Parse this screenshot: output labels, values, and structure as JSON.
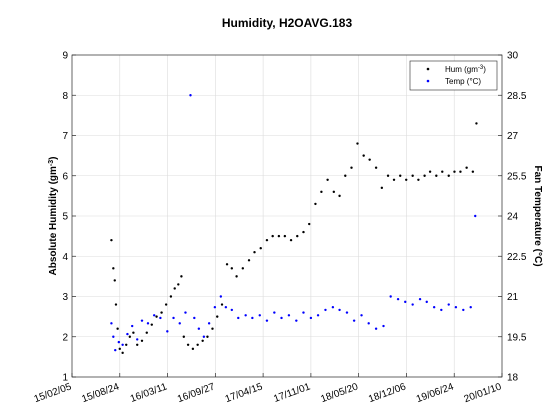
{
  "chart_data": {
    "type": "scatter",
    "title": "Humidity, H2OAVG.183",
    "ylabel_left": "Absolute Humidity (gm",
    "ylabel_left_sup": "-3",
    "ylabel_left_end": ")",
    "ylabel_right": "Fan Temperature (°C)",
    "x_ticks": [
      "15/02/05",
      "15/08/24",
      "16/03/11",
      "16/09/27",
      "17/04/15",
      "17/11/01",
      "18/05/20",
      "18/12/06",
      "19/06/24",
      "20/01/10"
    ],
    "xlim": [
      "2015-02-05",
      "2020-01-10"
    ],
    "ylim_left": [
      1,
      9
    ],
    "y_ticks_left": [
      "1",
      "2",
      "3",
      "4",
      "5",
      "6",
      "7",
      "8",
      "9"
    ],
    "ylim_right": [
      18,
      30
    ],
    "y_ticks_right": [
      "18",
      "19.5",
      "21",
      "22.5",
      "24",
      "25.5",
      "27",
      "28.5",
      "30"
    ],
    "grid": true,
    "legend_position": "top-right",
    "series": [
      {
        "name": "Hum (gm",
        "name_sup": "-3",
        "name_end": ")",
        "axis": "left",
        "color": "#000000",
        "marker": "dot",
        "points": [
          [
            "2015-07-20",
            4.4
          ],
          [
            "2015-07-28",
            3.7
          ],
          [
            "2015-08-03",
            3.4
          ],
          [
            "2015-08-08",
            2.8
          ],
          [
            "2015-08-15",
            2.2
          ],
          [
            "2015-08-24",
            1.7
          ],
          [
            "2015-09-05",
            1.6
          ],
          [
            "2015-09-20",
            1.8
          ],
          [
            "2015-10-05",
            2.0
          ],
          [
            "2015-10-20",
            2.1
          ],
          [
            "2015-11-05",
            1.8
          ],
          [
            "2015-11-25",
            1.9
          ],
          [
            "2015-12-15",
            2.1
          ],
          [
            "2016-01-05",
            2.3
          ],
          [
            "2016-01-25",
            2.5
          ],
          [
            "2016-02-15",
            2.6
          ],
          [
            "2016-03-05",
            2.8
          ],
          [
            "2016-03-25",
            3.0
          ],
          [
            "2016-04-10",
            3.2
          ],
          [
            "2016-04-25",
            3.3
          ],
          [
            "2016-05-08",
            3.5
          ],
          [
            "2016-05-18",
            2.0
          ],
          [
            "2016-06-05",
            1.8
          ],
          [
            "2016-06-25",
            1.7
          ],
          [
            "2016-07-15",
            1.8
          ],
          [
            "2016-08-05",
            1.9
          ],
          [
            "2016-08-25",
            2.0
          ],
          [
            "2016-09-15",
            2.2
          ],
          [
            "2016-10-05",
            2.5
          ],
          [
            "2016-10-25",
            2.8
          ],
          [
            "2016-11-15",
            3.8
          ],
          [
            "2016-12-05",
            3.7
          ],
          [
            "2016-12-25",
            3.5
          ],
          [
            "2017-01-20",
            3.7
          ],
          [
            "2017-02-15",
            3.9
          ],
          [
            "2017-03-10",
            4.1
          ],
          [
            "2017-04-05",
            4.2
          ],
          [
            "2017-05-01",
            4.4
          ],
          [
            "2017-05-25",
            4.5
          ],
          [
            "2017-06-20",
            4.5
          ],
          [
            "2017-07-15",
            4.5
          ],
          [
            "2017-08-10",
            4.4
          ],
          [
            "2017-09-05",
            4.5
          ],
          [
            "2017-10-01",
            4.6
          ],
          [
            "2017-10-25",
            4.8
          ],
          [
            "2017-11-20",
            5.3
          ],
          [
            "2017-12-15",
            5.6
          ],
          [
            "2018-01-10",
            5.9
          ],
          [
            "2018-02-05",
            5.6
          ],
          [
            "2018-03-01",
            5.5
          ],
          [
            "2018-03-25",
            6.0
          ],
          [
            "2018-04-20",
            6.2
          ],
          [
            "2018-05-15",
            6.8
          ],
          [
            "2018-06-10",
            6.5
          ],
          [
            "2018-07-05",
            6.4
          ],
          [
            "2018-08-01",
            6.2
          ],
          [
            "2018-08-25",
            5.7
          ],
          [
            "2018-09-20",
            6.0
          ],
          [
            "2018-10-15",
            5.9
          ],
          [
            "2018-11-10",
            6.0
          ],
          [
            "2018-12-05",
            5.9
          ],
          [
            "2019-01-01",
            6.0
          ],
          [
            "2019-01-25",
            5.9
          ],
          [
            "2019-02-20",
            6.0
          ],
          [
            "2019-03-15",
            6.1
          ],
          [
            "2019-04-10",
            6.0
          ],
          [
            "2019-05-05",
            6.1
          ],
          [
            "2019-06-01",
            6.0
          ],
          [
            "2019-06-25",
            6.1
          ],
          [
            "2019-07-20",
            6.1
          ],
          [
            "2019-08-15",
            6.2
          ],
          [
            "2019-09-10",
            6.1
          ],
          [
            "2019-09-25",
            7.3
          ]
        ]
      },
      {
        "name": "Temp (°C)",
        "axis": "right",
        "color": "#0000ff",
        "marker": "dot",
        "points": [
          [
            "2015-07-20",
            20.0
          ],
          [
            "2015-07-28",
            19.5
          ],
          [
            "2015-08-05",
            19.0
          ],
          [
            "2015-08-20",
            19.3
          ],
          [
            "2015-09-05",
            19.2
          ],
          [
            "2015-09-25",
            19.6
          ],
          [
            "2015-10-15",
            19.9
          ],
          [
            "2015-11-05",
            19.4
          ],
          [
            "2015-11-25",
            20.1
          ],
          [
            "2015-12-20",
            20.0
          ],
          [
            "2016-01-15",
            20.3
          ],
          [
            "2016-02-10",
            20.2
          ],
          [
            "2016-03-10",
            19.7
          ],
          [
            "2016-04-05",
            20.2
          ],
          [
            "2016-05-01",
            20.0
          ],
          [
            "2016-05-25",
            20.4
          ],
          [
            "2016-06-15",
            28.5
          ],
          [
            "2016-07-01",
            20.2
          ],
          [
            "2016-07-20",
            19.8
          ],
          [
            "2016-08-10",
            19.5
          ],
          [
            "2016-09-01",
            20.0
          ],
          [
            "2016-09-25",
            20.6
          ],
          [
            "2016-10-20",
            21.0
          ],
          [
            "2016-11-10",
            20.6
          ],
          [
            "2016-12-05",
            20.5
          ],
          [
            "2017-01-01",
            20.2
          ],
          [
            "2017-02-01",
            20.3
          ],
          [
            "2017-03-01",
            20.2
          ],
          [
            "2017-04-01",
            20.3
          ],
          [
            "2017-05-01",
            20.1
          ],
          [
            "2017-06-01",
            20.4
          ],
          [
            "2017-07-01",
            20.2
          ],
          [
            "2017-08-01",
            20.3
          ],
          [
            "2017-09-01",
            20.1
          ],
          [
            "2017-10-01",
            20.4
          ],
          [
            "2017-11-01",
            20.2
          ],
          [
            "2017-12-01",
            20.3
          ],
          [
            "2018-01-01",
            20.5
          ],
          [
            "2018-02-01",
            20.6
          ],
          [
            "2018-03-01",
            20.5
          ],
          [
            "2018-04-01",
            20.4
          ],
          [
            "2018-05-01",
            20.1
          ],
          [
            "2018-06-01",
            20.3
          ],
          [
            "2018-07-01",
            20.0
          ],
          [
            "2018-08-01",
            19.8
          ],
          [
            "2018-09-01",
            19.9
          ],
          [
            "2018-10-01",
            21.0
          ],
          [
            "2018-11-01",
            20.9
          ],
          [
            "2018-12-01",
            20.8
          ],
          [
            "2019-01-01",
            20.7
          ],
          [
            "2019-02-01",
            20.9
          ],
          [
            "2019-03-01",
            20.8
          ],
          [
            "2019-04-01",
            20.6
          ],
          [
            "2019-05-01",
            20.5
          ],
          [
            "2019-06-01",
            20.7
          ],
          [
            "2019-07-01",
            20.6
          ],
          [
            "2019-08-01",
            20.5
          ],
          [
            "2019-09-01",
            20.6
          ],
          [
            "2019-09-20",
            24.0
          ]
        ]
      }
    ]
  },
  "colors": {
    "hum": "#000000",
    "temp": "#0000ff",
    "grid": "#dcdcdc",
    "frame": "#262626"
  }
}
